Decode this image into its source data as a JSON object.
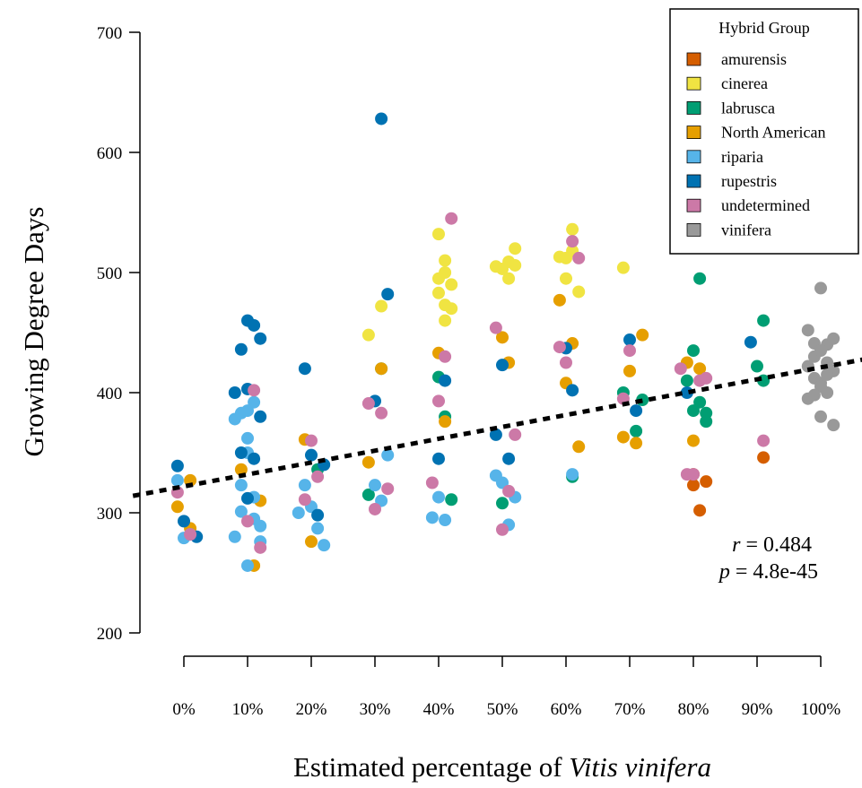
{
  "chart_data": {
    "type": "scatter",
    "title": "",
    "ylabel": "Growing Degree Days",
    "xlabel_prefix": "Estimated percentage of ",
    "xlabel_italic": "Vitis vinifera",
    "ylim": [
      200,
      700
    ],
    "yticks": [
      "200",
      "300",
      "400",
      "500",
      "600",
      "700"
    ],
    "categories": [
      "0%",
      "10%",
      "20%",
      "30%",
      "40%",
      "50%",
      "60%",
      "70%",
      "80%",
      "90%",
      "100%"
    ],
    "grid": false,
    "legend": {
      "title": "Hybrid Group",
      "position": "top-right",
      "entries": [
        {
          "name": "amurensis",
          "color": "#D55E00"
        },
        {
          "name": "cinerea",
          "color": "#F0E442"
        },
        {
          "name": "labrusca",
          "color": "#009E73"
        },
        {
          "name": "North American",
          "color": "#E69F00"
        },
        {
          "name": "riparia",
          "color": "#56B4E9"
        },
        {
          "name": "rupestris",
          "color": "#0072B2"
        },
        {
          "name": "undetermined",
          "color": "#CC79A7"
        },
        {
          "name": "vinifera",
          "color": "#999999"
        }
      ]
    },
    "trendline": {
      "style": "dotted",
      "intercept": 322,
      "slope_per_10pct": 9.9
    },
    "stats": {
      "r_label": "r",
      "r_value": "= 0.484",
      "p_label": "p",
      "p_value": "= 4.8e-45"
    },
    "series": [
      {
        "group": "amurensis",
        "x": [
          80,
          80,
          81,
          82,
          91
        ],
        "y": [
          332,
          323,
          302,
          326,
          346
        ]
      },
      {
        "group": "cinerea",
        "x": [
          31,
          29,
          40,
          41,
          41,
          42,
          40,
          41,
          42,
          41,
          40,
          49,
          51,
          50,
          52,
          52,
          51,
          59,
          61,
          60,
          61,
          60,
          62,
          69
        ],
        "y": [
          472,
          448,
          532,
          510,
          500,
          490,
          483,
          473,
          470,
          460,
          495,
          505,
          509,
          503,
          520,
          506,
          495,
          513,
          536,
          512,
          518,
          495,
          484,
          504
        ]
      },
      {
        "group": "labrusca",
        "x": [
          21,
          29,
          31,
          40,
          42,
          41,
          50,
          61,
          71,
          69,
          72,
          79,
          81,
          82,
          80,
          91,
          90,
          91,
          81,
          80,
          82
        ],
        "y": [
          336,
          315,
          420,
          413,
          311,
          380,
          308,
          330,
          368,
          400,
          394,
          410,
          495,
          383,
          435,
          460,
          422,
          410,
          392,
          385,
          376
        ]
      },
      {
        "group": "North American",
        "x": [
          -1,
          1,
          1,
          9,
          11,
          12,
          19,
          20,
          31,
          29,
          40,
          41,
          50,
          51,
          59,
          60,
          61,
          62,
          69,
          71,
          72,
          70,
          79,
          80,
          81
        ],
        "y": [
          305,
          287,
          327,
          336,
          256,
          310,
          361,
          276,
          420,
          342,
          433,
          376,
          446,
          425,
          477,
          408,
          441,
          355,
          363,
          358,
          448,
          418,
          425,
          360,
          420
        ]
      },
      {
        "group": "riparia",
        "x": [
          -1,
          1,
          0,
          9,
          8,
          10,
          11,
          10,
          9,
          11,
          12,
          8,
          10,
          9,
          11,
          12,
          10,
          19,
          21,
          20,
          22,
          18,
          30,
          31,
          32,
          39,
          41,
          40,
          49,
          51,
          50,
          52,
          61
        ],
        "y": [
          327,
          282,
          279,
          383,
          378,
          385,
          392,
          362,
          323,
          313,
          289,
          280,
          256,
          301,
          295,
          276,
          350,
          323,
          287,
          305,
          273,
          300,
          323,
          310,
          348,
          296,
          294,
          313,
          331,
          290,
          325,
          313,
          332
        ]
      },
      {
        "group": "rupestris",
        "x": [
          -1,
          0,
          2,
          9,
          10,
          11,
          12,
          10,
          8,
          9,
          11,
          10,
          12,
          19,
          20,
          22,
          21,
          31,
          30,
          32,
          41,
          40,
          50,
          49,
          51,
          60,
          61,
          70,
          71,
          79,
          89
        ],
        "y": [
          339,
          293,
          280,
          436,
          460,
          456,
          445,
          403,
          400,
          350,
          345,
          312,
          380,
          420,
          348,
          340,
          298,
          628,
          393,
          482,
          410,
          345,
          423,
          365,
          345,
          437,
          402,
          444,
          385,
          400,
          442
        ]
      },
      {
        "group": "undetermined",
        "x": [
          -1,
          1,
          11,
          10,
          12,
          20,
          21,
          19,
          29,
          31,
          30,
          32,
          40,
          42,
          41,
          39,
          49,
          51,
          50,
          52,
          59,
          60,
          61,
          62,
          70,
          69,
          78,
          79,
          80,
          81,
          82,
          91
        ],
        "y": [
          317,
          282,
          402,
          293,
          271,
          360,
          330,
          311,
          391,
          383,
          303,
          320,
          393,
          545,
          430,
          325,
          454,
          318,
          286,
          365,
          438,
          425,
          526,
          512,
          435,
          395,
          420,
          332,
          332,
          410,
          412,
          360
        ]
      },
      {
        "group": "vinifera",
        "x": [
          98,
          99,
          100,
          101,
          102,
          99,
          100,
          101,
          98,
          100,
          102,
          99,
          101,
          100,
          98,
          102,
          100,
          99,
          101
        ],
        "y": [
          452,
          441,
          487,
          425,
          418,
          412,
          408,
          400,
          395,
          380,
          373,
          430,
          440,
          435,
          422,
          445,
          405,
          398,
          415
        ]
      }
    ]
  }
}
